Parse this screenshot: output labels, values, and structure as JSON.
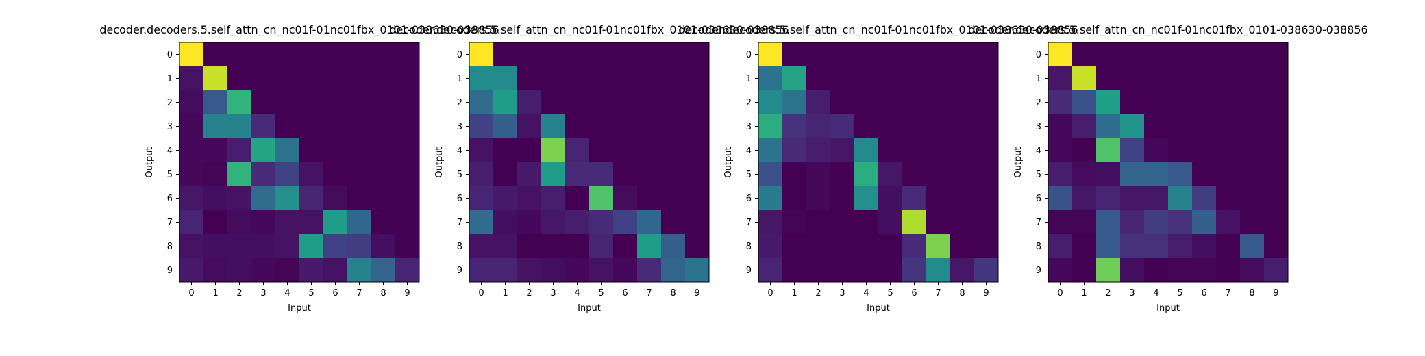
{
  "figure": {
    "colormap": "viridis",
    "colormap_stops": [
      "#440154",
      "#482878",
      "#3e4989",
      "#31688e",
      "#26828e",
      "#1f9e89",
      "#35b779",
      "#6ece58",
      "#b5de2b",
      "#fde725"
    ]
  },
  "chart_data": [
    {
      "type": "heatmap",
      "title": "decoder.decoders.5.self_attn_cn_nc01f-01nc01fbx_0101-038630-038856",
      "xlabel": "Input",
      "ylabel": "Output",
      "x_ticks": [
        "0",
        "1",
        "2",
        "3",
        "4",
        "5",
        "6",
        "7",
        "8",
        "9"
      ],
      "y_ticks": [
        "0",
        "1",
        "2",
        "3",
        "4",
        "5",
        "6",
        "7",
        "8",
        "9"
      ],
      "value_range": [
        0,
        1
      ],
      "matrix": [
        [
          1.0,
          0,
          0,
          0,
          0,
          0,
          0,
          0,
          0,
          0
        ],
        [
          0.05,
          0.92,
          0,
          0,
          0,
          0,
          0,
          0,
          0,
          0
        ],
        [
          0.03,
          0.28,
          0.65,
          0,
          0,
          0,
          0,
          0,
          0,
          0
        ],
        [
          0.02,
          0.45,
          0.45,
          0.12,
          0,
          0,
          0,
          0,
          0,
          0
        ],
        [
          0.02,
          0.02,
          0.08,
          0.58,
          0.38,
          0,
          0,
          0,
          0,
          0
        ],
        [
          0.02,
          0.01,
          0.65,
          0.12,
          0.2,
          0.05,
          0,
          0,
          0,
          0
        ],
        [
          0.06,
          0.04,
          0.05,
          0.35,
          0.5,
          0.1,
          0.03,
          0,
          0,
          0
        ],
        [
          0.1,
          0.0,
          0.03,
          0.02,
          0.05,
          0.05,
          0.55,
          0.33,
          0,
          0
        ],
        [
          0.05,
          0.04,
          0.04,
          0.04,
          0.05,
          0.55,
          0.2,
          0.18,
          0.04,
          0
        ],
        [
          0.07,
          0.03,
          0.04,
          0.02,
          0.01,
          0.07,
          0.05,
          0.45,
          0.32,
          0.1
        ]
      ]
    },
    {
      "type": "heatmap",
      "title": "decoder.decoders.5.self_attn_cn_nc01f-01nc01fbx_0101-038630-038856",
      "xlabel": "Input",
      "ylabel": "Output",
      "x_ticks": [
        "0",
        "1",
        "2",
        "3",
        "4",
        "5",
        "6",
        "7",
        "8",
        "9"
      ],
      "y_ticks": [
        "0",
        "1",
        "2",
        "3",
        "4",
        "5",
        "6",
        "7",
        "8",
        "9"
      ],
      "value_range": [
        0,
        1
      ],
      "matrix": [
        [
          1.0,
          0,
          0,
          0,
          0,
          0,
          0,
          0,
          0,
          0
        ],
        [
          0.48,
          0.48,
          0,
          0,
          0,
          0,
          0,
          0,
          0,
          0
        ],
        [
          0.35,
          0.55,
          0.08,
          0,
          0,
          0,
          0,
          0,
          0,
          0
        ],
        [
          0.2,
          0.3,
          0.05,
          0.45,
          0,
          0,
          0,
          0,
          0,
          0
        ],
        [
          0.05,
          0.0,
          0.0,
          0.8,
          0.1,
          0,
          0,
          0,
          0,
          0
        ],
        [
          0.08,
          0.0,
          0.07,
          0.55,
          0.12,
          0.12,
          0,
          0,
          0,
          0
        ],
        [
          0.1,
          0.07,
          0.05,
          0.08,
          0.0,
          0.72,
          0.03,
          0,
          0,
          0
        ],
        [
          0.35,
          0.04,
          0.02,
          0.06,
          0.08,
          0.12,
          0.2,
          0.33,
          0,
          0
        ],
        [
          0.05,
          0.05,
          0.0,
          0.0,
          0.0,
          0.1,
          0.0,
          0.55,
          0.3,
          0
        ],
        [
          0.1,
          0.1,
          0.05,
          0.04,
          0.02,
          0.05,
          0.02,
          0.12,
          0.32,
          0.38
        ]
      ]
    },
    {
      "type": "heatmap",
      "title": "decoder.decoders.5.self_attn_cn_nc01f-01nc01fbx_0101-038630-038856",
      "xlabel": "Input",
      "ylabel": "Output",
      "x_ticks": [
        "0",
        "1",
        "2",
        "3",
        "4",
        "5",
        "6",
        "7",
        "8",
        "9"
      ],
      "y_ticks": [
        "0",
        "1",
        "2",
        "3",
        "4",
        "5",
        "6",
        "7",
        "8",
        "9"
      ],
      "value_range": [
        0,
        1
      ],
      "matrix": [
        [
          1.0,
          0,
          0,
          0,
          0,
          0,
          0,
          0,
          0,
          0
        ],
        [
          0.38,
          0.58,
          0,
          0,
          0,
          0,
          0,
          0,
          0,
          0
        ],
        [
          0.48,
          0.38,
          0.08,
          0,
          0,
          0,
          0,
          0,
          0,
          0
        ],
        [
          0.62,
          0.14,
          0.1,
          0.12,
          0,
          0,
          0,
          0,
          0,
          0
        ],
        [
          0.38,
          0.12,
          0.08,
          0.06,
          0.48,
          0,
          0,
          0,
          0,
          0
        ],
        [
          0.25,
          0.0,
          0.02,
          0.0,
          0.62,
          0.06,
          0,
          0,
          0,
          0
        ],
        [
          0.42,
          0.0,
          0.02,
          0.0,
          0.5,
          0.04,
          0.12,
          0,
          0,
          0
        ],
        [
          0.06,
          0.01,
          0.0,
          0.0,
          0.0,
          0.04,
          0.88,
          0,
          0,
          0
        ],
        [
          0.07,
          0.0,
          0.0,
          0.0,
          0.0,
          0.0,
          0.12,
          0.8,
          0,
          0
        ],
        [
          0.1,
          0.0,
          0.0,
          0.0,
          0.0,
          0.0,
          0.15,
          0.48,
          0.06,
          0.16
        ]
      ]
    },
    {
      "type": "heatmap",
      "title": "decoder.decoders.5.self_attn_cn_nc01f-01nc01fbx_0101-038630-038856",
      "xlabel": "Input",
      "ylabel": "Output",
      "x_ticks": [
        "0",
        "1",
        "2",
        "3",
        "4",
        "5",
        "6",
        "7",
        "8",
        "9"
      ],
      "y_ticks": [
        "0",
        "1",
        "2",
        "3",
        "4",
        "5",
        "6",
        "7",
        "8",
        "9"
      ],
      "value_range": [
        0,
        1
      ],
      "matrix": [
        [
          1.0,
          0,
          0,
          0,
          0,
          0,
          0,
          0,
          0,
          0
        ],
        [
          0.06,
          0.92,
          0,
          0,
          0,
          0,
          0,
          0,
          0,
          0
        ],
        [
          0.12,
          0.25,
          0.56,
          0,
          0,
          0,
          0,
          0,
          0,
          0
        ],
        [
          0.02,
          0.08,
          0.35,
          0.52,
          0,
          0,
          0,
          0,
          0,
          0
        ],
        [
          0.02,
          0.0,
          0.72,
          0.2,
          0.02,
          0,
          0,
          0,
          0,
          0
        ],
        [
          0.08,
          0.03,
          0.04,
          0.32,
          0.32,
          0.28,
          0,
          0,
          0,
          0
        ],
        [
          0.25,
          0.06,
          0.1,
          0.06,
          0.06,
          0.45,
          0.18,
          0,
          0,
          0
        ],
        [
          0.01,
          0.01,
          0.28,
          0.1,
          0.18,
          0.14,
          0.3,
          0.05,
          0,
          0
        ],
        [
          0.08,
          0.0,
          0.28,
          0.14,
          0.14,
          0.08,
          0.04,
          0.0,
          0.28,
          0
        ],
        [
          0.02,
          0.0,
          0.78,
          0.04,
          0.0,
          0.01,
          0.01,
          0.0,
          0.03,
          0.08
        ]
      ]
    }
  ]
}
